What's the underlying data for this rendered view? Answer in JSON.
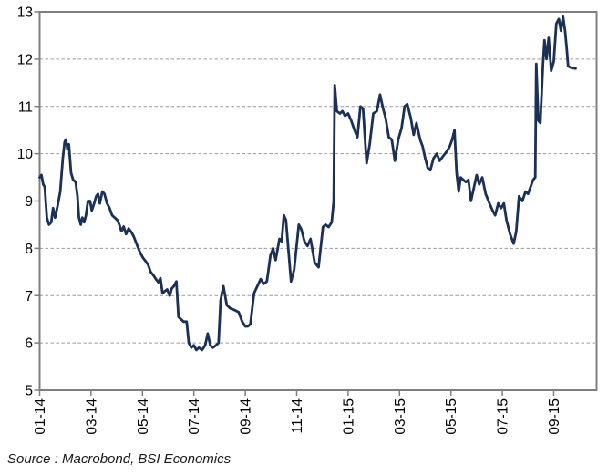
{
  "chart_data": {
    "type": "line",
    "title": "",
    "source_note": "Source : Macrobond, BSI Economics",
    "x_axis": {
      "unit": "months since 2014-01 (fractional)",
      "tick_positions_months": [
        0,
        2,
        4,
        6,
        8,
        10,
        12,
        14,
        16,
        18,
        20
      ],
      "tick_labels": [
        "01-14",
        "03-14",
        "05-14",
        "07-14",
        "09-14",
        "11-14",
        "01-15",
        "03-15",
        "05-15",
        "07-15",
        "09-15"
      ],
      "labels_rotated_degrees": -90
    },
    "y_axis": {
      "min": 5,
      "max": 13,
      "ticks": [
        5,
        6,
        7,
        8,
        9,
        10,
        11,
        12,
        13
      ]
    },
    "grid": {
      "horizontal_dashed": true,
      "color": "#9a9a9a"
    },
    "border_color": "#7f7f7f",
    "tick_color": "#7f7f7f",
    "label_color": "#000000",
    "series": [
      {
        "name": "series-1",
        "color": "#1b3055",
        "points": [
          [
            0,
            9.5
          ],
          [
            0.07,
            9.55
          ],
          [
            0.14,
            9.35
          ],
          [
            0.2,
            9.3
          ],
          [
            0.28,
            8.65
          ],
          [
            0.36,
            8.5
          ],
          [
            0.45,
            8.55
          ],
          [
            0.52,
            8.85
          ],
          [
            0.6,
            8.65
          ],
          [
            0.7,
            8.9
          ],
          [
            0.8,
            9.2
          ],
          [
            0.9,
            9.9
          ],
          [
            0.97,
            10.25
          ],
          [
            1.02,
            10.3
          ],
          [
            1.08,
            10.1
          ],
          [
            1.14,
            10.2
          ],
          [
            1.22,
            9.6
          ],
          [
            1.3,
            9.45
          ],
          [
            1.4,
            9.4
          ],
          [
            1.47,
            9.1
          ],
          [
            1.53,
            8.65
          ],
          [
            1.6,
            8.5
          ],
          [
            1.66,
            8.65
          ],
          [
            1.73,
            8.55
          ],
          [
            1.8,
            8.7
          ],
          [
            1.88,
            9.0
          ],
          [
            1.96,
            9.0
          ],
          [
            2.03,
            8.8
          ],
          [
            2.12,
            8.95
          ],
          [
            2.2,
            9.1
          ],
          [
            2.27,
            9.15
          ],
          [
            2.34,
            8.95
          ],
          [
            2.44,
            9.2
          ],
          [
            2.52,
            9.15
          ],
          [
            2.62,
            8.95
          ],
          [
            2.72,
            8.85
          ],
          [
            2.82,
            8.7
          ],
          [
            2.92,
            8.65
          ],
          [
            3.02,
            8.6
          ],
          [
            3.1,
            8.5
          ],
          [
            3.18,
            8.36
          ],
          [
            3.27,
            8.46
          ],
          [
            3.36,
            8.3
          ],
          [
            3.46,
            8.42
          ],
          [
            3.56,
            8.35
          ],
          [
            3.66,
            8.25
          ],
          [
            3.8,
            8.05
          ],
          [
            3.92,
            7.9
          ],
          [
            4.02,
            7.8
          ],
          [
            4.12,
            7.73
          ],
          [
            4.22,
            7.65
          ],
          [
            4.32,
            7.5
          ],
          [
            4.44,
            7.42
          ],
          [
            4.52,
            7.35
          ],
          [
            4.62,
            7.28
          ],
          [
            4.7,
            7.37
          ],
          [
            4.78,
            7.05
          ],
          [
            4.88,
            7.1
          ],
          [
            4.96,
            7.13
          ],
          [
            5.06,
            7.0
          ],
          [
            5.14,
            7.15
          ],
          [
            5.22,
            7.2
          ],
          [
            5.32,
            7.3
          ],
          [
            5.4,
            6.55
          ],
          [
            5.5,
            6.5
          ],
          [
            5.6,
            6.45
          ],
          [
            5.72,
            6.45
          ],
          [
            5.8,
            6.0
          ],
          [
            5.9,
            5.9
          ],
          [
            6.0,
            5.95
          ],
          [
            6.1,
            5.85
          ],
          [
            6.2,
            5.9
          ],
          [
            6.32,
            5.85
          ],
          [
            6.44,
            5.95
          ],
          [
            6.54,
            6.2
          ],
          [
            6.64,
            5.95
          ],
          [
            6.74,
            5.9
          ],
          [
            6.86,
            5.95
          ],
          [
            6.96,
            6.0
          ],
          [
            7.04,
            6.9
          ],
          [
            7.15,
            7.2
          ],
          [
            7.28,
            6.8
          ],
          [
            7.42,
            6.73
          ],
          [
            7.56,
            6.7
          ],
          [
            7.74,
            6.65
          ],
          [
            7.88,
            6.45
          ],
          [
            8.0,
            6.35
          ],
          [
            8.1,
            6.35
          ],
          [
            8.2,
            6.4
          ],
          [
            8.34,
            7.05
          ],
          [
            8.6,
            7.35
          ],
          [
            8.72,
            7.25
          ],
          [
            8.84,
            7.3
          ],
          [
            8.98,
            7.85
          ],
          [
            9.08,
            8.0
          ],
          [
            9.18,
            7.75
          ],
          [
            9.33,
            8.2
          ],
          [
            9.42,
            8.15
          ],
          [
            9.5,
            8.7
          ],
          [
            9.58,
            8.6
          ],
          [
            9.78,
            7.3
          ],
          [
            9.9,
            7.55
          ],
          [
            10.08,
            8.5
          ],
          [
            10.18,
            8.4
          ],
          [
            10.3,
            8.15
          ],
          [
            10.42,
            8.05
          ],
          [
            10.54,
            8.2
          ],
          [
            10.7,
            7.7
          ],
          [
            10.85,
            7.6
          ],
          [
            11.02,
            8.45
          ],
          [
            11.12,
            8.5
          ],
          [
            11.24,
            8.45
          ],
          [
            11.36,
            8.55
          ],
          [
            11.44,
            9.0
          ],
          [
            11.48,
            11.45
          ],
          [
            11.56,
            10.9
          ],
          [
            11.68,
            10.85
          ],
          [
            11.78,
            10.9
          ],
          [
            11.88,
            10.8
          ],
          [
            12.0,
            10.85
          ],
          [
            12.12,
            10.7
          ],
          [
            12.25,
            10.5
          ],
          [
            12.36,
            10.35
          ],
          [
            12.48,
            11.0
          ],
          [
            12.58,
            10.95
          ],
          [
            12.72,
            9.8
          ],
          [
            12.84,
            10.2
          ],
          [
            12.98,
            10.85
          ],
          [
            13.12,
            10.9
          ],
          [
            13.24,
            11.25
          ],
          [
            13.36,
            10.95
          ],
          [
            13.46,
            10.75
          ],
          [
            13.58,
            10.35
          ],
          [
            13.7,
            10.3
          ],
          [
            13.82,
            9.85
          ],
          [
            13.95,
            10.3
          ],
          [
            14.08,
            10.55
          ],
          [
            14.2,
            11.0
          ],
          [
            14.3,
            11.05
          ],
          [
            14.44,
            10.75
          ],
          [
            14.55,
            10.4
          ],
          [
            14.66,
            10.65
          ],
          [
            14.8,
            10.3
          ],
          [
            14.9,
            10.15
          ],
          [
            15.0,
            9.9
          ],
          [
            15.1,
            9.7
          ],
          [
            15.2,
            9.65
          ],
          [
            15.32,
            9.9
          ],
          [
            15.45,
            10.0
          ],
          [
            15.56,
            9.85
          ],
          [
            15.7,
            9.95
          ],
          [
            15.84,
            10.05
          ],
          [
            15.95,
            10.15
          ],
          [
            16.05,
            10.3
          ],
          [
            16.14,
            10.5
          ],
          [
            16.22,
            9.6
          ],
          [
            16.3,
            9.2
          ],
          [
            16.38,
            9.5
          ],
          [
            16.48,
            9.45
          ],
          [
            16.58,
            9.4
          ],
          [
            16.68,
            9.45
          ],
          [
            16.78,
            9.0
          ],
          [
            16.9,
            9.3
          ],
          [
            17.0,
            9.55
          ],
          [
            17.1,
            9.35
          ],
          [
            17.22,
            9.5
          ],
          [
            17.35,
            9.15
          ],
          [
            17.5,
            8.95
          ],
          [
            17.62,
            8.8
          ],
          [
            17.72,
            8.7
          ],
          [
            17.84,
            8.95
          ],
          [
            17.95,
            8.85
          ],
          [
            18.06,
            8.95
          ],
          [
            18.16,
            8.6
          ],
          [
            18.3,
            8.3
          ],
          [
            18.44,
            8.1
          ],
          [
            18.54,
            8.35
          ],
          [
            18.65,
            9.1
          ],
          [
            18.78,
            9.0
          ],
          [
            18.9,
            9.2
          ],
          [
            19.0,
            9.15
          ],
          [
            19.1,
            9.3
          ],
          [
            19.2,
            9.45
          ],
          [
            19.28,
            9.5
          ],
          [
            19.32,
            11.9
          ],
          [
            19.4,
            10.7
          ],
          [
            19.48,
            10.65
          ],
          [
            19.58,
            11.9
          ],
          [
            19.64,
            12.4
          ],
          [
            19.72,
            12.0
          ],
          [
            19.8,
            12.45
          ],
          [
            19.9,
            11.75
          ],
          [
            20.0,
            11.95
          ],
          [
            20.1,
            12.75
          ],
          [
            20.2,
            12.85
          ],
          [
            20.28,
            12.6
          ],
          [
            20.36,
            12.9
          ],
          [
            20.44,
            12.6
          ],
          [
            20.5,
            12.25
          ],
          [
            20.56,
            11.85
          ],
          [
            20.66,
            11.82
          ],
          [
            20.85,
            11.8
          ]
        ]
      }
    ]
  }
}
